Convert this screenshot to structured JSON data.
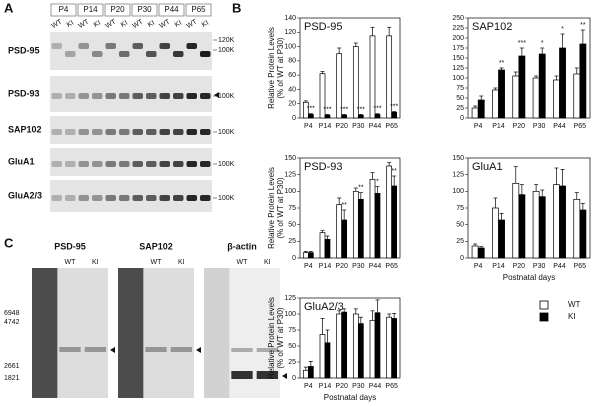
{
  "panel_a": {
    "label": "A",
    "ages": [
      "P4",
      "P14",
      "P20",
      "P30",
      "P44",
      "P65"
    ],
    "lanes": [
      "WT",
      "KI",
      "WT",
      "KI",
      "WT",
      "KI",
      "WT",
      "KI",
      "WT",
      "KI",
      "WT",
      "KI"
    ],
    "rows": [
      {
        "name": "PSD-95",
        "markers": [
          "120K",
          "100K"
        ]
      },
      {
        "name": "PSD-93",
        "markers": [
          "100K"
        ]
      },
      {
        "name": "SAP102",
        "markers": [
          "100K"
        ]
      },
      {
        "name": "GluA1",
        "markers": [
          "100K"
        ]
      },
      {
        "name": "GluA2/3",
        "markers": [
          "100K"
        ]
      }
    ]
  },
  "panel_b": {
    "label": "B"
  },
  "panel_c": {
    "label": "C",
    "blots": [
      {
        "title": "PSD-95",
        "lanes": [
          "WT",
          "KI"
        ]
      },
      {
        "title": "SAP102",
        "lanes": [
          "WT",
          "KI"
        ]
      },
      {
        "title": "β-actin",
        "lanes": [
          "WT",
          "KI"
        ]
      }
    ],
    "markers": [
      "6948",
      "4742",
      "2661",
      "1821"
    ]
  },
  "chart_data": [
    {
      "type": "bar",
      "title": "PSD-95",
      "ylabel": [
        "Relative Protein Levels",
        "(% of WT at P30)"
      ],
      "categories": [
        "P4",
        "P14",
        "P20",
        "P30",
        "P44",
        "P65"
      ],
      "series": [
        {
          "color": "#ffffff",
          "values": [
            22,
            62,
            90,
            100,
            115,
            115
          ],
          "errors": [
            2,
            3,
            8,
            5,
            12,
            12
          ]
        },
        {
          "color": "#000000",
          "values": [
            5,
            4,
            4,
            4,
            5,
            8
          ],
          "errors": [
            1,
            1,
            1,
            1,
            1,
            1
          ]
        }
      ],
      "annotations": [
        "***",
        "***",
        "***",
        "***",
        "***",
        "***"
      ],
      "ylim": [
        0,
        140
      ],
      "yticks": [
        0,
        20,
        40,
        60,
        80,
        100,
        120,
        140
      ]
    },
    {
      "type": "bar",
      "title": "SAP102",
      "categories": [
        "P4",
        "P14",
        "P20",
        "P30",
        "P44",
        "P65"
      ],
      "series": [
        {
          "color": "#ffffff",
          "values": [
            25,
            70,
            105,
            100,
            95,
            110
          ],
          "errors": [
            5,
            5,
            10,
            5,
            10,
            15
          ]
        },
        {
          "color": "#000000",
          "values": [
            45,
            120,
            155,
            160,
            175,
            185
          ],
          "errors": [
            10,
            5,
            20,
            15,
            35,
            35
          ]
        }
      ],
      "annotations": [
        null,
        "**",
        "***",
        "*",
        "*",
        "**"
      ],
      "ylim": [
        0,
        250
      ],
      "yticks": [
        0,
        25,
        50,
        75,
        100,
        125,
        150,
        175,
        200,
        225,
        250
      ]
    },
    {
      "type": "bar",
      "title": "PSD-93",
      "ylabel": [
        "Relative Protein Levels",
        "(% of WT at P30)"
      ],
      "categories": [
        "P4",
        "P14",
        "P20",
        "P30",
        "P44",
        "P65"
      ],
      "series": [
        {
          "color": "#ffffff",
          "values": [
            8,
            38,
            80,
            100,
            118,
            138
          ],
          "errors": [
            2,
            3,
            10,
            5,
            10,
            5
          ]
        },
        {
          "color": "#000000",
          "values": [
            8,
            28,
            57,
            88,
            97,
            108
          ],
          "errors": [
            2,
            5,
            15,
            10,
            10,
            15
          ]
        }
      ],
      "annotations": [
        null,
        null,
        "**",
        "**",
        "*",
        "**"
      ],
      "ylim": [
        0,
        150
      ],
      "yticks": [
        0,
        25,
        50,
        75,
        100,
        125,
        150
      ]
    },
    {
      "type": "bar",
      "title": "GluA1",
      "xlabel": "Postnatal days",
      "categories": [
        "P4",
        "P14",
        "P20",
        "P30",
        "P44",
        "P65"
      ],
      "series": [
        {
          "color": "#ffffff",
          "values": [
            18,
            75,
            112,
            100,
            110,
            88
          ],
          "errors": [
            3,
            15,
            25,
            10,
            25,
            10
          ]
        },
        {
          "color": "#000000",
          "values": [
            15,
            57,
            95,
            92,
            108,
            72
          ],
          "errors": [
            2,
            10,
            15,
            10,
            25,
            10
          ]
        }
      ],
      "ylim": [
        0,
        150
      ],
      "yticks": [
        0,
        25,
        50,
        75,
        100,
        125,
        150
      ]
    },
    {
      "type": "bar",
      "title": "GluA2/3",
      "xlabel": "Postnatal days",
      "ylabel": [
        "Relative Protein Levels",
        "(% of WT at P30)"
      ],
      "categories": [
        "P4",
        "P14",
        "P20",
        "P30",
        "P44",
        "P65"
      ],
      "series": [
        {
          "name": "WT",
          "color": "#ffffff",
          "values": [
            12,
            68,
            100,
            100,
            90,
            95
          ],
          "errors": [
            5,
            25,
            5,
            8,
            15,
            5
          ]
        },
        {
          "name": "KI",
          "color": "#000000",
          "values": [
            18,
            55,
            103,
            85,
            102,
            93
          ],
          "errors": [
            8,
            20,
            5,
            10,
            20,
            8
          ]
        }
      ],
      "legend": "right",
      "ylim": [
        0,
        125
      ],
      "yticks": [
        0,
        25,
        50,
        75,
        100,
        125
      ]
    }
  ]
}
